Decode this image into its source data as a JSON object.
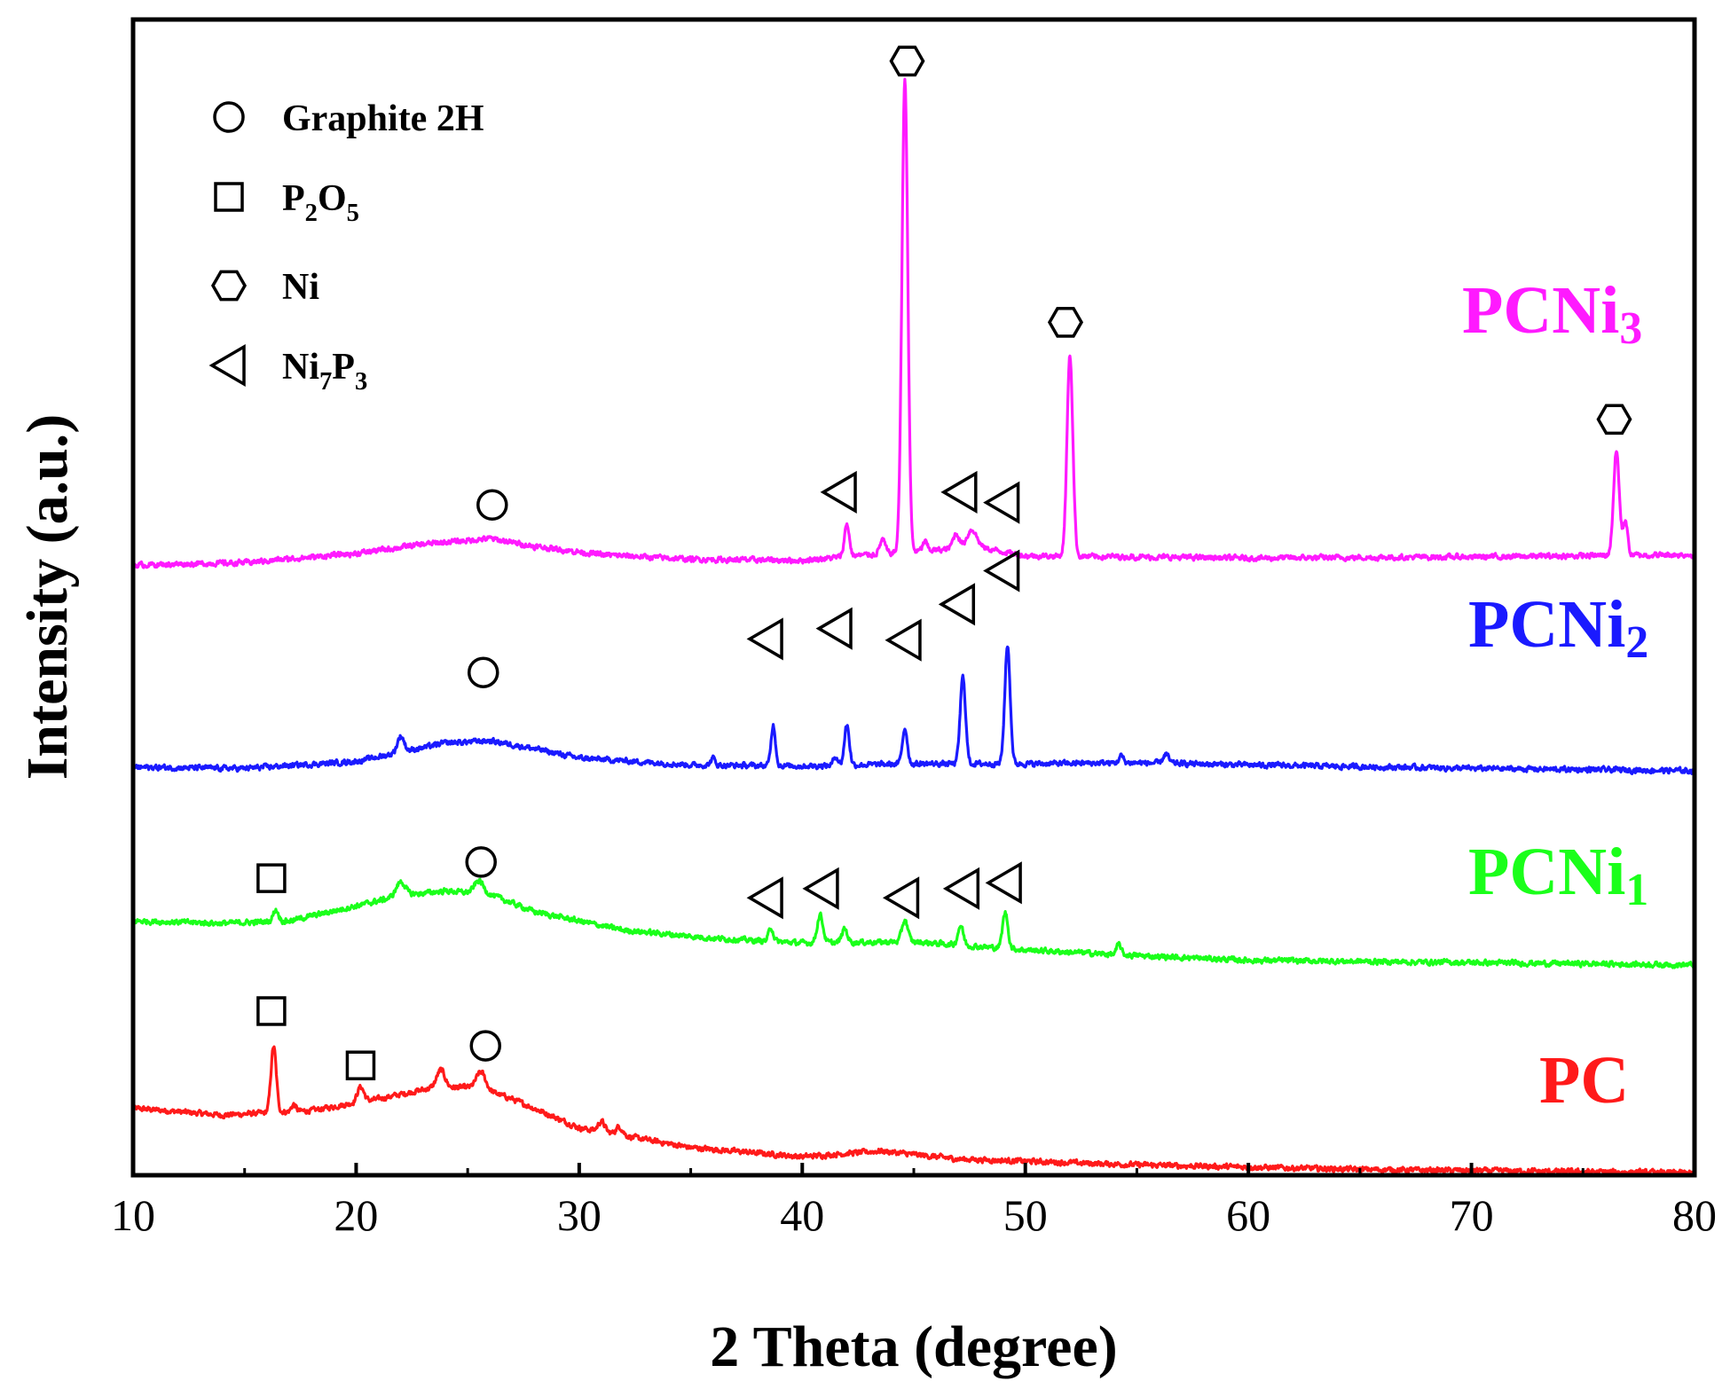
{
  "chart_data": {
    "type": "line",
    "title": "",
    "xlabel": "2 Theta (degree)",
    "ylabel": "Intensity (a.u.)",
    "xlim": [
      10,
      80
    ],
    "xticks": [
      10,
      20,
      30,
      40,
      50,
      60,
      70,
      80
    ],
    "ylim": [
      0,
      100
    ],
    "yticks_shown": false,
    "grid": false,
    "legend": {
      "position": "top-left",
      "entries": [
        {
          "marker": "circle",
          "label": "Graphite 2H",
          "label_parts": [
            {
              "t": "Graphite 2H"
            }
          ]
        },
        {
          "marker": "square",
          "label": "P2O5",
          "label_parts": [
            {
              "t": "P"
            },
            {
              "t": "2",
              "sub": true
            },
            {
              "t": "O"
            },
            {
              "t": "5",
              "sub": true
            }
          ]
        },
        {
          "marker": "hexagon",
          "label": "Ni",
          "label_parts": [
            {
              "t": "Ni"
            }
          ]
        },
        {
          "marker": "triangle",
          "label": "Ni7P3",
          "label_parts": [
            {
              "t": "Ni"
            },
            {
              "t": "7",
              "sub": true
            },
            {
              "t": "P"
            },
            {
              "t": "3",
              "sub": true
            }
          ]
        }
      ]
    },
    "series": [
      {
        "name": "PC",
        "label_parts": [
          {
            "t": "PC"
          }
        ],
        "color": "#ff1a1a",
        "baseline": [
          [
            10,
            5.8
          ],
          [
            14,
            5.2
          ],
          [
            18,
            5.6
          ],
          [
            21,
            6.6
          ],
          [
            23.5,
            7.6
          ],
          [
            25.5,
            7.6
          ],
          [
            27,
            6.6
          ],
          [
            30,
            4.1
          ],
          [
            35,
            2.4
          ],
          [
            40,
            1.6
          ],
          [
            43.5,
            2.1
          ],
          [
            47,
            1.4
          ],
          [
            55,
            0.9
          ],
          [
            65,
            0.5
          ],
          [
            80,
            0.2
          ]
        ],
        "peaks": [
          [
            16.3,
            5.7,
            0.12
          ],
          [
            17.2,
            0.6,
            0.1
          ],
          [
            20.2,
            1.3,
            0.15
          ],
          [
            23.8,
            1.5,
            0.18
          ],
          [
            25.6,
            1.4,
            0.2
          ],
          [
            31.0,
            0.9,
            0.15
          ],
          [
            31.8,
            0.7,
            0.15
          ]
        ],
        "markers": [
          {
            "type": "square",
            "x": 16.2,
            "y": 14.2
          },
          {
            "type": "square",
            "x": 20.2,
            "y": 9.5
          },
          {
            "type": "circle",
            "x": 25.8,
            "y": 11.2
          }
        ]
      },
      {
        "name": "PCNi1",
        "label_parts": [
          {
            "t": "PCNi"
          },
          {
            "t": "1",
            "sub": true
          }
        ],
        "color": "#1aff1a",
        "baseline": [
          [
            10,
            22
          ],
          [
            14,
            21.8
          ],
          [
            17,
            22
          ],
          [
            20,
            23.3
          ],
          [
            22,
            24.2
          ],
          [
            24,
            24.6
          ],
          [
            26,
            24.3
          ],
          [
            28,
            22.8
          ],
          [
            32,
            21.2
          ],
          [
            36,
            20.5
          ],
          [
            40,
            20.1
          ],
          [
            45,
            20.2
          ],
          [
            50,
            19.5
          ],
          [
            55,
            19
          ],
          [
            60,
            18.6
          ],
          [
            70,
            18.4
          ],
          [
            80,
            18.2
          ]
        ],
        "peaks": [
          [
            16.4,
            1.0,
            0.12
          ],
          [
            22.0,
            1.2,
            0.2
          ],
          [
            25.5,
            1.1,
            0.2
          ],
          [
            38.6,
            1.2,
            0.1
          ],
          [
            40.8,
            2.4,
            0.13
          ],
          [
            41.9,
            1.2,
            0.12
          ],
          [
            44.6,
            1.9,
            0.13
          ],
          [
            47.1,
            1.7,
            0.12
          ],
          [
            49.1,
            3.1,
            0.12
          ],
          [
            54.2,
            0.9,
            0.1
          ]
        ],
        "markers": [
          {
            "type": "square",
            "x": 16.2,
            "y": 25.7
          },
          {
            "type": "circle",
            "x": 25.6,
            "y": 27.1
          },
          {
            "type": "triangle",
            "x": 38.4,
            "y": 24.0
          },
          {
            "type": "triangle",
            "x": 40.9,
            "y": 24.8
          },
          {
            "type": "triangle",
            "x": 44.5,
            "y": 24.0
          },
          {
            "type": "triangle",
            "x": 47.2,
            "y": 24.8
          },
          {
            "type": "triangle",
            "x": 49.1,
            "y": 25.3
          }
        ]
      },
      {
        "name": "PCNi2",
        "label_parts": [
          {
            "t": "PCNi"
          },
          {
            "t": "2",
            "sub": true
          }
        ],
        "color": "#1a1aff",
        "baseline": [
          [
            10,
            35.3
          ],
          [
            15,
            35.2
          ],
          [
            20,
            35.8
          ],
          [
            22,
            36.6
          ],
          [
            24,
            37.4
          ],
          [
            26,
            37.6
          ],
          [
            28,
            36.9
          ],
          [
            30,
            36.1
          ],
          [
            35,
            35.5
          ],
          [
            40,
            35.4
          ],
          [
            45,
            35.6
          ],
          [
            50,
            35.6
          ],
          [
            55,
            35.7
          ],
          [
            60,
            35.5
          ],
          [
            70,
            35.2
          ],
          [
            80,
            35.0
          ]
        ],
        "peaks": [
          [
            22.0,
            1.4,
            0.15
          ],
          [
            36.0,
            0.6,
            0.1
          ],
          [
            38.7,
            3.5,
            0.1
          ],
          [
            41.5,
            0.8,
            0.1
          ],
          [
            42.0,
            3.5,
            0.11
          ],
          [
            44.6,
            3.1,
            0.11
          ],
          [
            47.2,
            7.5,
            0.12
          ],
          [
            49.2,
            10.2,
            0.12
          ],
          [
            54.3,
            0.6,
            0.1
          ],
          [
            56.3,
            0.8,
            0.12
          ]
        ],
        "markers": [
          {
            "type": "circle",
            "x": 25.7,
            "y": 43.5
          },
          {
            "type": "triangle",
            "x": 38.4,
            "y": 46.4
          },
          {
            "type": "triangle",
            "x": 41.5,
            "y": 47.3
          },
          {
            "type": "triangle",
            "x": 44.6,
            "y": 46.3
          },
          {
            "type": "triangle",
            "x": 47.0,
            "y": 49.4
          },
          {
            "type": "triangle",
            "x": 49.0,
            "y": 52.3
          }
        ]
      },
      {
        "name": "PCNi3",
        "label_parts": [
          {
            "t": "PCNi"
          },
          {
            "t": "3",
            "sub": true
          }
        ],
        "color": "#ff1aff",
        "baseline": [
          [
            10,
            52.8
          ],
          [
            15,
            53.0
          ],
          [
            20,
            53.8
          ],
          [
            23,
            54.6
          ],
          [
            26,
            55.1
          ],
          [
            28,
            54.4
          ],
          [
            31,
            53.7
          ],
          [
            35,
            53.3
          ],
          [
            40,
            53.2
          ],
          [
            43,
            53.7
          ],
          [
            46,
            54.1
          ],
          [
            48,
            54.3
          ],
          [
            50,
            53.6
          ],
          [
            55,
            53.5
          ],
          [
            60,
            53.4
          ],
          [
            70,
            53.5
          ],
          [
            80,
            53.7
          ]
        ],
        "peaks": [
          [
            42.0,
            2.8,
            0.11
          ],
          [
            43.6,
            1.2,
            0.12
          ],
          [
            44.6,
            41.0,
            0.13
          ],
          [
            45.5,
            0.8,
            0.1
          ],
          [
            46.9,
            1.3,
            0.15
          ],
          [
            47.6,
            1.6,
            0.22
          ],
          [
            52.0,
            17.4,
            0.13
          ],
          [
            76.5,
            9.0,
            0.13
          ],
          [
            76.9,
            3.0,
            0.1
          ]
        ],
        "markers": [
          {
            "type": "circle",
            "x": 26.1,
            "y": 58.0
          },
          {
            "type": "triangle",
            "x": 41.7,
            "y": 59.1
          },
          {
            "type": "triangle",
            "x": 47.1,
            "y": 59.1
          },
          {
            "type": "triangle",
            "x": 49.0,
            "y": 58.2
          },
          {
            "type": "hexagon",
            "x": 44.7,
            "y": 96.4
          },
          {
            "type": "hexagon",
            "x": 51.8,
            "y": 73.8
          },
          {
            "type": "hexagon",
            "x": 76.4,
            "y": 65.4
          }
        ]
      }
    ]
  }
}
